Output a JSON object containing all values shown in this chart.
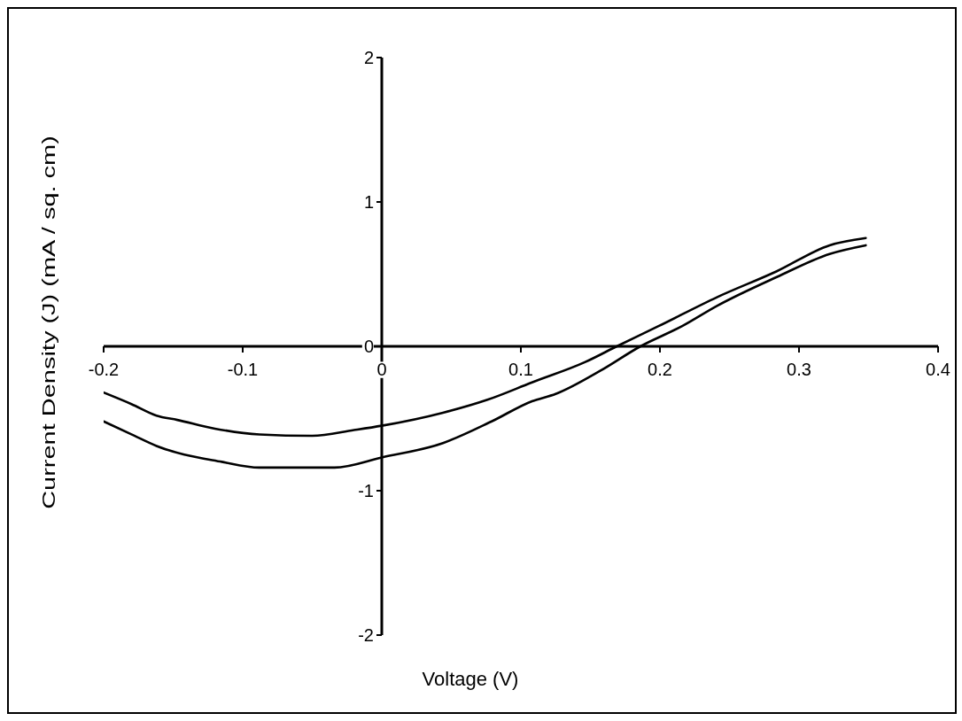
{
  "chart_data": {
    "type": "line",
    "xlabel": "Voltage (V)",
    "ylabel": "Current Density (J) (mA / sq. cm)",
    "xlim": [
      -0.2,
      0.4
    ],
    "ylim": [
      -2,
      2
    ],
    "xticks": [
      -0.2,
      -0.1,
      0,
      0.1,
      0.2,
      0.3,
      0.4
    ],
    "yticks": [
      -2,
      -1,
      0,
      1,
      2
    ],
    "marker": "none",
    "series": [
      {
        "color": "#000000",
        "x": [
          -0.2,
          -0.18,
          -0.162,
          -0.147,
          -0.12,
          -0.088,
          -0.05,
          -0.02,
          0.0,
          0.044,
          0.076,
          0.108,
          0.146,
          0.169,
          0.199,
          0.241,
          0.284,
          0.322,
          0.348
        ],
        "values": [
          -0.32,
          -0.4,
          -0.48,
          -0.51,
          -0.57,
          -0.61,
          -0.62,
          -0.58,
          -0.55,
          -0.46,
          -0.37,
          -0.25,
          -0.11,
          0.0,
          0.14,
          0.34,
          0.52,
          0.7,
          0.75
        ]
      },
      {
        "color": "#000000",
        "x": [
          -0.2,
          -0.18,
          -0.162,
          -0.115,
          -0.088,
          -0.034,
          0.0,
          0.044,
          0.079,
          0.108,
          0.125,
          0.157,
          0.186,
          0.216,
          0.241,
          0.284,
          0.322,
          0.348
        ],
        "values": [
          -0.52,
          -0.61,
          -0.69,
          -0.8,
          -0.84,
          -0.84,
          -0.77,
          -0.67,
          -0.52,
          -0.38,
          -0.33,
          -0.17,
          0.0,
          0.14,
          0.28,
          0.48,
          0.64,
          0.7
        ]
      }
    ]
  }
}
